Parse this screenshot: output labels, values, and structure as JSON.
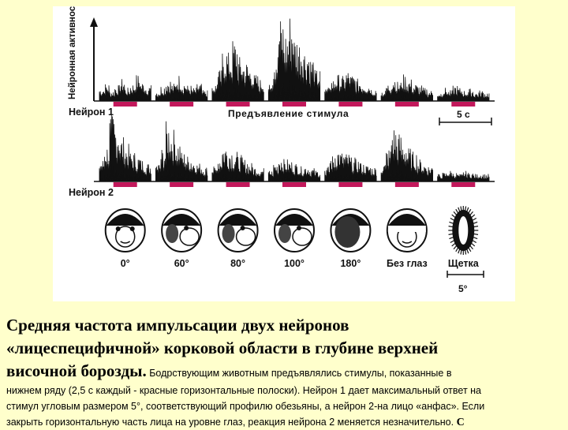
{
  "figure": {
    "y_axis_label": "Нейронная активность",
    "neuron1_label": "Нейрон 1",
    "stimulus_label": "Предъявление стимула",
    "time_scale_label": "5 с",
    "neuron2_label": "Нейрон 2",
    "angle_scale_label": "5°",
    "stimulus_bar_color": "#c2185b",
    "stimuli": [
      {
        "label": "0°",
        "icon": "monkey-face-frontal-icon",
        "n1": [
          0.15,
          0.2,
          0.12,
          0.18,
          0.25,
          0.15,
          0.2,
          0.3,
          0.22,
          0.18
        ],
        "n2": [
          0.3,
          0.5,
          0.9,
          0.8,
          0.6,
          0.5,
          0.4,
          0.35,
          0.3,
          0.25
        ]
      },
      {
        "label": "60°",
        "icon": "monkey-face-60-icon",
        "n1": [
          0.12,
          0.18,
          0.25,
          0.2,
          0.3,
          0.22,
          0.18,
          0.15,
          0.2,
          0.12
        ],
        "n2": [
          0.25,
          0.45,
          0.8,
          0.7,
          0.55,
          0.4,
          0.35,
          0.3,
          0.25,
          0.2
        ]
      },
      {
        "label": "80°",
        "icon": "monkey-face-80-icon",
        "n1": [
          0.2,
          0.35,
          0.6,
          0.55,
          0.7,
          0.5,
          0.45,
          0.4,
          0.3,
          0.25
        ],
        "n2": [
          0.2,
          0.35,
          0.5,
          0.45,
          0.4,
          0.35,
          0.3,
          0.25,
          0.2,
          0.18
        ]
      },
      {
        "label": "100°",
        "icon": "monkey-face-100-icon",
        "n1": [
          0.3,
          0.55,
          0.95,
          0.8,
          1.0,
          0.75,
          0.7,
          0.6,
          0.5,
          0.35
        ],
        "n2": [
          0.15,
          0.25,
          0.35,
          0.3,
          0.28,
          0.25,
          0.2,
          0.22,
          0.18,
          0.15
        ]
      },
      {
        "label": "180°",
        "icon": "monkey-head-back-icon",
        "n1": [
          0.15,
          0.25,
          0.3,
          0.28,
          0.35,
          0.3,
          0.25,
          0.22,
          0.2,
          0.15
        ],
        "n2": [
          0.2,
          0.35,
          0.45,
          0.4,
          0.38,
          0.32,
          0.3,
          0.25,
          0.22,
          0.2
        ]
      },
      {
        "label": "Без глаз",
        "icon": "monkey-face-no-eyes-icon",
        "n1": [
          0.12,
          0.2,
          0.28,
          0.22,
          0.3,
          0.25,
          0.2,
          0.18,
          0.15,
          0.12
        ],
        "n2": [
          0.25,
          0.45,
          0.75,
          0.65,
          0.55,
          0.45,
          0.4,
          0.3,
          0.25,
          0.22
        ]
      },
      {
        "label": "Щетка",
        "icon": "brush-icon",
        "n1": [
          0.1,
          0.15,
          0.12,
          0.18,
          0.15,
          0.12,
          0.14,
          0.1,
          0.12,
          0.1
        ],
        "n2": [
          0.1,
          0.12,
          0.15,
          0.12,
          0.1,
          0.14,
          0.12,
          0.1,
          0.11,
          0.1
        ]
      }
    ]
  },
  "caption": {
    "title_line1": "Средняя частота импульсации двух нейронов",
    "title_line2": "«лицеспецифичной» корковой области в глубине верхней",
    "title_line3_bold": "височной борозды.",
    "text_line3": " Бодрствующим животным предъявлялись стимулы, показанные в",
    "text_line4": "нижнем ряду (2,5 с каждый - красные горизонтальные полоски). Нейрон 1 дает максимальный ответ на",
    "text_line5": "стимул угловым размером 5°, соответствующий профилю обезьяны, а нейрон 2-на лицо «анфас». Если",
    "text_line6": "закрыть горизонтальную часть лица на уровне глаз, реакция нейрона 2 меняется незначительно.",
    "text_tail": " С"
  }
}
